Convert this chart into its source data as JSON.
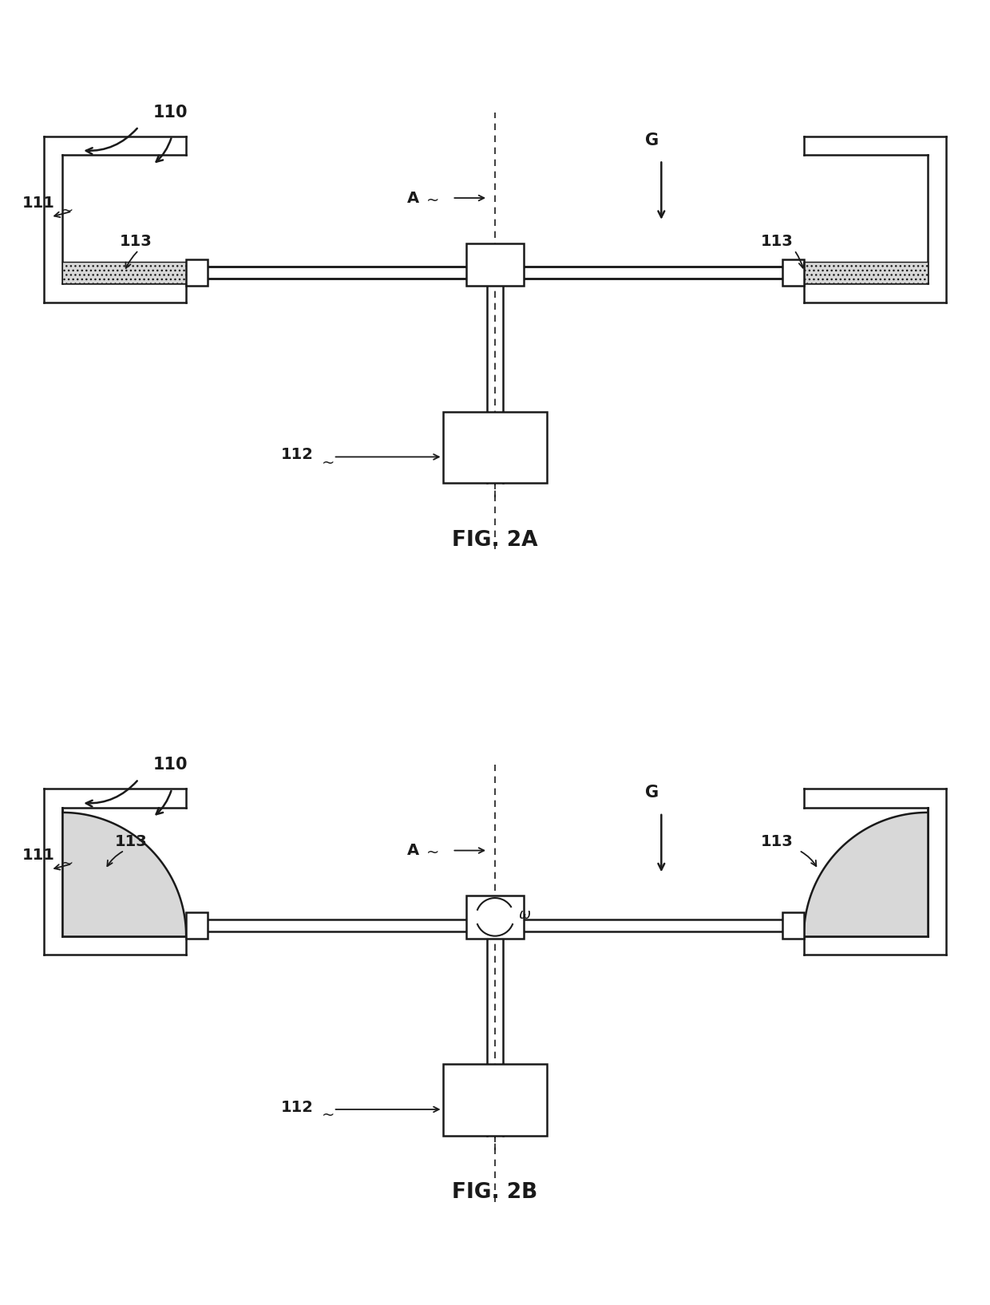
{
  "fig_width": 12.4,
  "fig_height": 16.35,
  "bg_color": "#ffffff",
  "line_color": "#1a1a1a",
  "fig2a_title": "FIG. 2A",
  "fig2b_title": "FIG. 2B",
  "label_110": "110",
  "label_111": "111",
  "label_112": "112",
  "label_113_left": "113",
  "label_113_right": "113",
  "label_A": "A",
  "label_G": "G",
  "label_omega": "ω"
}
